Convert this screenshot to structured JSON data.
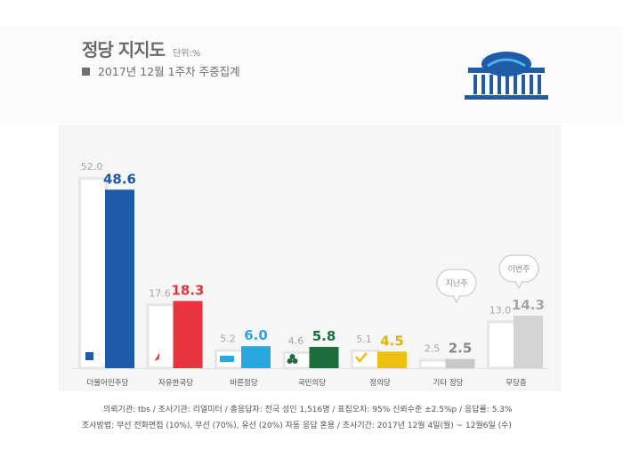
{
  "header": {
    "title": "정당 지지도",
    "unit": "단위:%",
    "subtitle": "2017년 12월 1주차 주중집계"
  },
  "colors": {
    "minjoo": "#1d5aa7",
    "hankook": "#e8343e",
    "bareun": "#29a8e0",
    "kookmin": "#1b6e3c",
    "jeongui": "#ecc10f",
    "etc": "#c9c9c9",
    "none": "#d4d4d4",
    "prev_outline": "#e6e6e6",
    "prev_label": "#a6a6a6"
  },
  "chart_data": {
    "type": "bar",
    "categories": [
      "더불어민주당",
      "자유한국당",
      "바른정당",
      "국민의당",
      "정의당",
      "기타 정당",
      "무당층"
    ],
    "series": [
      {
        "values": [
          52.0,
          17.6,
          5.2,
          4.6,
          5.1,
          2.5,
          13.0
        ]
      },
      {
        "values": [
          48.6,
          18.3,
          6.0,
          5.8,
          4.5,
          2.5,
          14.3
        ]
      }
    ],
    "prev_labels": [
      "52.0",
      "17.6",
      "5.2",
      "4.6",
      "5.1",
      "2.5",
      "13.0"
    ],
    "curr_labels": [
      "48.6",
      "18.3",
      "6.0",
      "5.8",
      "4.5",
      "2.5",
      "14.3"
    ],
    "bar_colors": [
      "#1d5aa7",
      "#e8343e",
      "#29a8e0",
      "#1b6e3c",
      "#ecc10f",
      "#c9c9c9",
      "#d4d4d4"
    ],
    "label_colors": [
      "#1d5aa7",
      "#e8343e",
      "#29a8e0",
      "#1b6e3c",
      "#e0b40a",
      "#8a8a8a",
      "#a6a6a6"
    ],
    "callouts": [
      "지난주",
      "이번주"
    ],
    "ylim": [
      0,
      55
    ]
  },
  "footer": {
    "line1": "의뢰기관: tbs / 조사기관: 리얼미터 / 총응답자: 전국 성인 1,516명 / 표집오차: 95% 신뢰수준 ±2.5%p / 응답률: 5.3%",
    "line2": "조사방법: 무선 전화면접 (10%), 무선 (70%), 유선 (20%) 자동 응답 혼용 / 조사기간: 2017년 12월 4일(월) ~ 12월6일 (수)"
  }
}
